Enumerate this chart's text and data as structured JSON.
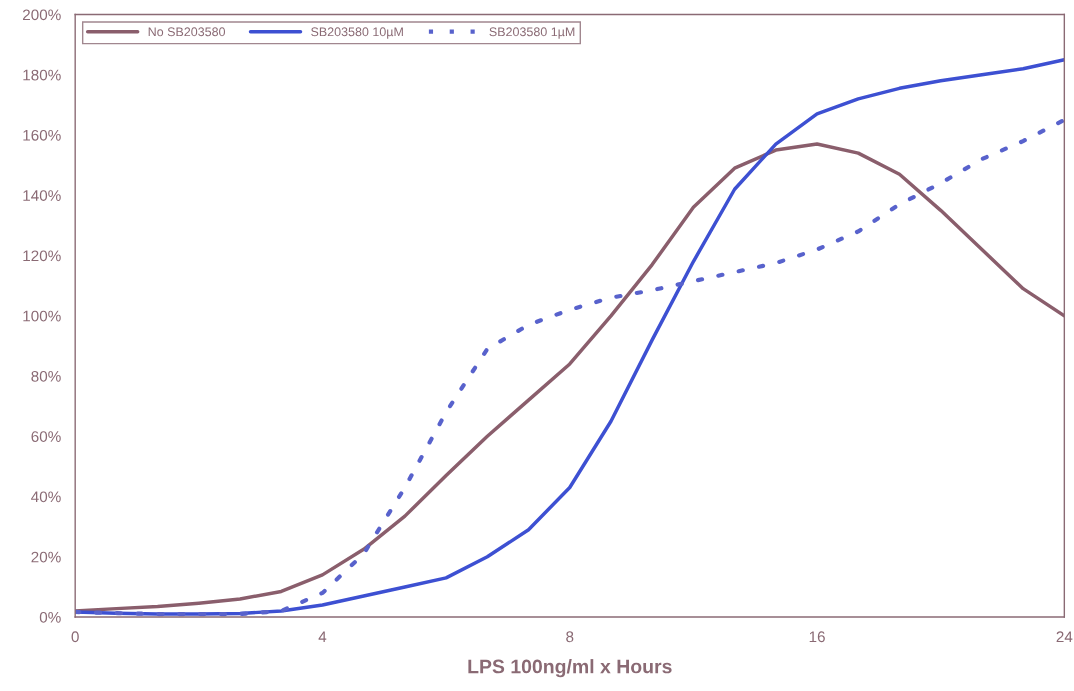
{
  "chart_data": {
    "type": "line",
    "xlabel": "LPS 100ng/ml x Hours",
    "categories": [
      "0",
      null,
      null,
      null,
      null,
      null,
      "4",
      null,
      null,
      null,
      null,
      null,
      "8",
      null,
      null,
      null,
      null,
      null,
      "16",
      null,
      null,
      null,
      null,
      null,
      "24"
    ],
    "ylim": [
      0,
      200
    ],
    "yticks": [
      {
        "value": 0,
        "label": "0%"
      },
      {
        "value": 20,
        "label": "20%"
      },
      {
        "value": 40,
        "label": "40%"
      },
      {
        "value": 60,
        "label": "60%"
      },
      {
        "value": 80,
        "label": "80%"
      },
      {
        "value": 100,
        "label": "100%"
      },
      {
        "value": 120,
        "label": "120%"
      },
      {
        "value": 140,
        "label": "140%"
      },
      {
        "value": 160,
        "label": "160%"
      },
      {
        "value": 180,
        "label": "180%"
      },
      {
        "value": 200,
        "label": "200%"
      }
    ],
    "grid": false,
    "legend": "top left",
    "marker": "none",
    "series": [
      {
        "name": "No SB203580",
        "color": "#8a5e6c",
        "line_style": "solid",
        "values": [
          2,
          2.8,
          3.5,
          4.6,
          6,
          8.5,
          14,
          22.5,
          33.5,
          47,
          60,
          72,
          84,
          100,
          117,
          136,
          149,
          155,
          157,
          154,
          147,
          135,
          122,
          109,
          100
        ]
      },
      {
        "name": "SB203580 10µM",
        "color": "#3d50d2",
        "line_style": "solid",
        "values": [
          1.7,
          1.3,
          1,
          1,
          1.2,
          2,
          4,
          7,
          10,
          13,
          20,
          29,
          43,
          65,
          92,
          118,
          142,
          157,
          167,
          172,
          175.5,
          178,
          180,
          182,
          185
        ]
      },
      {
        "name": "SB203580 1µM",
        "color": "#5862cc",
        "line_style": "dotted",
        "values": [
          1.7,
          1.3,
          1,
          1,
          1,
          2,
          8,
          21,
          43,
          68,
          89,
          97,
          102,
          106,
          108.5,
          111.5,
          114.5,
          117.5,
          122,
          128,
          137,
          144,
          152,
          158,
          165
        ]
      }
    ]
  }
}
